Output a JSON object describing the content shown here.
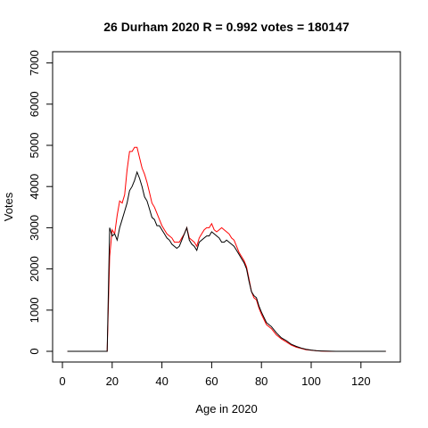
{
  "chart_data": {
    "type": "line",
    "title": "26 Durham 2020 R = 0.992 votes = 180147",
    "xlabel": "Age in 2020",
    "ylabel": "Votes",
    "xlim": [
      0,
      130
    ],
    "ylim": [
      0,
      7000
    ],
    "xticks": [
      0,
      20,
      40,
      60,
      80,
      100,
      120
    ],
    "yticks": [
      0,
      1000,
      2000,
      3000,
      4000,
      5000,
      6000,
      7000
    ],
    "grid": false,
    "series": [
      {
        "color": "#000000",
        "x": [
          2,
          18,
          19,
          20,
          21,
          22,
          23,
          24,
          25,
          26,
          27,
          28,
          29,
          30,
          31,
          32,
          33,
          34,
          35,
          36,
          37,
          38,
          39,
          40,
          41,
          42,
          43,
          44,
          45,
          46,
          47,
          48,
          49,
          50,
          51,
          52,
          53,
          54,
          55,
          56,
          57,
          58,
          59,
          60,
          61,
          62,
          63,
          64,
          65,
          66,
          67,
          68,
          69,
          70,
          71,
          72,
          73,
          74,
          75,
          76,
          77,
          78,
          79,
          80,
          82,
          84,
          86,
          88,
          90,
          92,
          94,
          96,
          98,
          100,
          102,
          104,
          106,
          108,
          110,
          115,
          120,
          125,
          130
        ],
        "y": [
          0,
          0,
          3000,
          2800,
          2850,
          2700,
          3000,
          3200,
          3400,
          3600,
          3900,
          4000,
          4150,
          4350,
          4200,
          4000,
          3750,
          3650,
          3450,
          3250,
          3200,
          3050,
          3050,
          2950,
          2850,
          2750,
          2700,
          2600,
          2550,
          2500,
          2550,
          2700,
          2850,
          3000,
          2700,
          2600,
          2550,
          2450,
          2650,
          2700,
          2750,
          2800,
          2800,
          2900,
          2850,
          2800,
          2750,
          2650,
          2650,
          2700,
          2650,
          2600,
          2550,
          2450,
          2350,
          2250,
          2150,
          2000,
          1700,
          1450,
          1350,
          1300,
          1100,
          950,
          700,
          600,
          450,
          330,
          260,
          170,
          120,
          80,
          50,
          30,
          15,
          8,
          4,
          2,
          0,
          0,
          0,
          0,
          0
        ]
      },
      {
        "color": "#ff0000",
        "x": [
          2,
          18,
          19,
          20,
          21,
          22,
          23,
          24,
          25,
          26,
          27,
          28,
          29,
          30,
          31,
          32,
          33,
          34,
          35,
          36,
          37,
          38,
          39,
          40,
          41,
          42,
          43,
          44,
          45,
          46,
          47,
          48,
          49,
          50,
          51,
          52,
          53,
          54,
          55,
          56,
          57,
          58,
          59,
          60,
          61,
          62,
          63,
          64,
          65,
          66,
          67,
          68,
          69,
          70,
          71,
          72,
          73,
          74,
          75,
          76,
          77,
          78,
          79,
          80,
          82,
          84,
          86,
          88,
          90,
          92,
          94,
          96,
          98,
          100,
          102,
          104,
          106,
          108,
          110,
          115,
          120,
          125,
          130
        ],
        "y": [
          0,
          0,
          2300,
          2950,
          2850,
          3300,
          3650,
          3600,
          3800,
          4400,
          4850,
          4850,
          4950,
          4950,
          4700,
          4450,
          4300,
          4100,
          3850,
          3600,
          3500,
          3350,
          3200,
          3050,
          2950,
          2850,
          2800,
          2750,
          2650,
          2650,
          2650,
          2750,
          2850,
          3000,
          2750,
          2700,
          2650,
          2550,
          2750,
          2850,
          2950,
          3000,
          3000,
          3100,
          2950,
          2900,
          2950,
          3000,
          2950,
          2900,
          2850,
          2750,
          2700,
          2550,
          2400,
          2300,
          2200,
          2050,
          1750,
          1450,
          1300,
          1250,
          1050,
          900,
          650,
          550,
          400,
          300,
          230,
          150,
          100,
          70,
          40,
          25,
          12,
          6,
          3,
          1,
          0,
          0,
          0,
          0,
          0
        ]
      }
    ]
  }
}
